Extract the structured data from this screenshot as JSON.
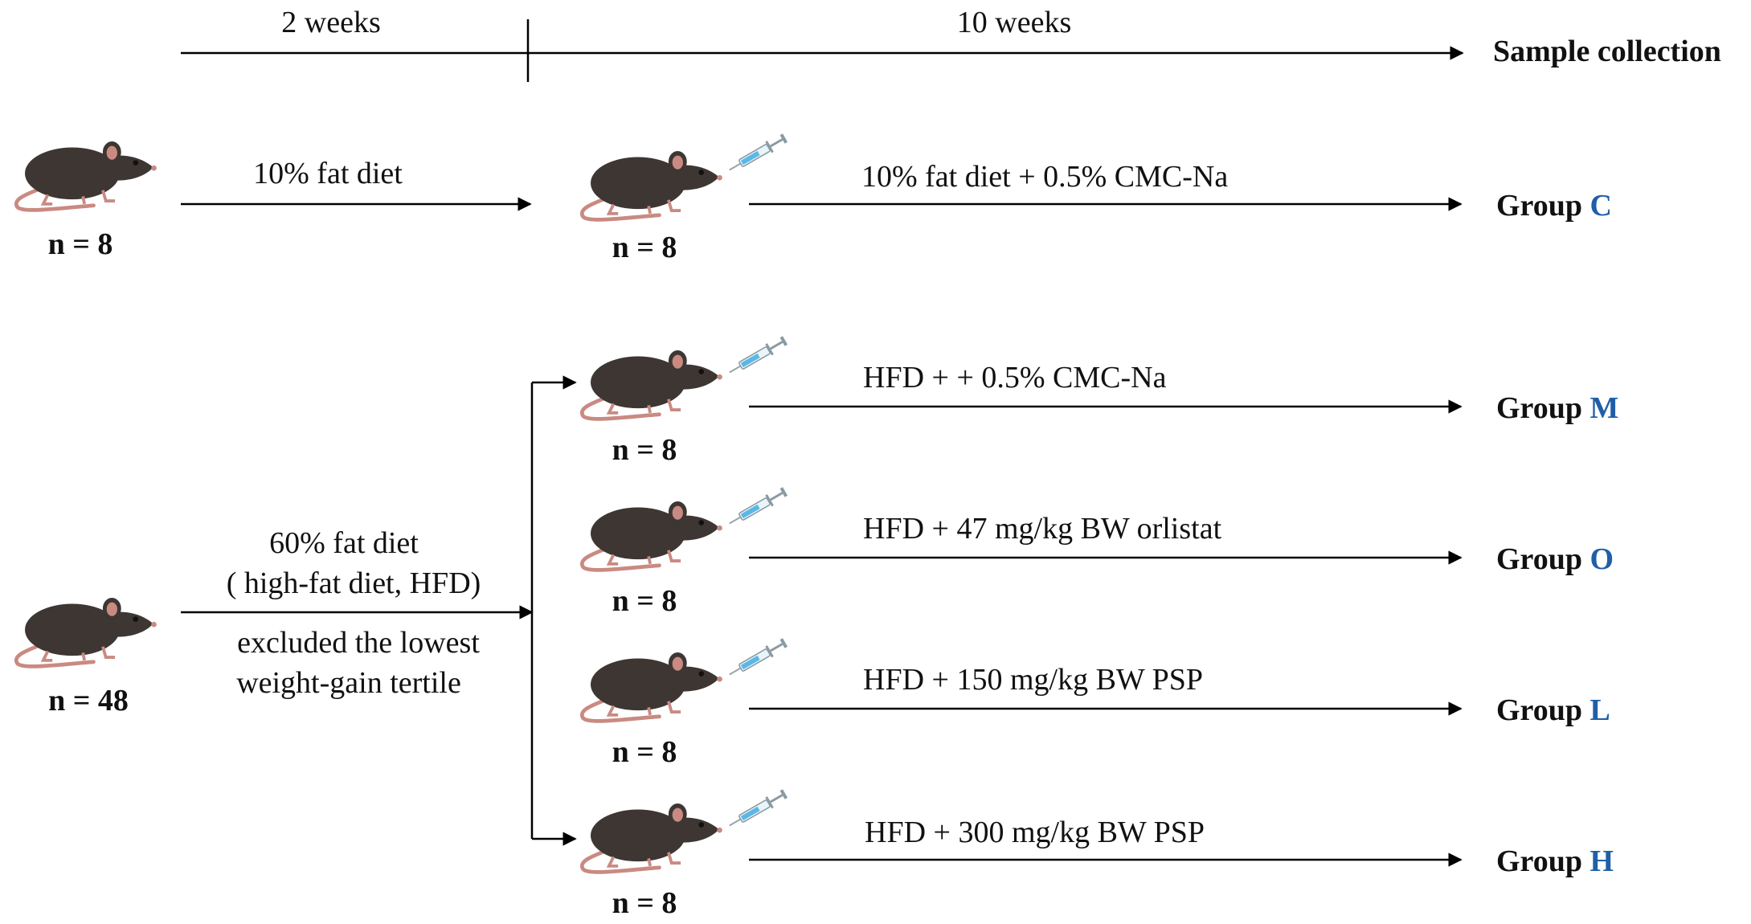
{
  "timeline": {
    "phase1_label": "2 weeks",
    "phase2_label": "10 weeks",
    "endpoint_label": "Sample collection"
  },
  "control_branch": {
    "start_count": "n = 8",
    "diet_label": "10% fat diet",
    "treated_count": "n = 8",
    "treatment_label": "10% fat diet + 0.5% CMC-Na",
    "group_prefix": "Group",
    "group_code": "C"
  },
  "hfd_branch": {
    "start_count": "n = 48",
    "diet_label_line1": "60% fat diet",
    "diet_label_line2": "( high-fat diet, HFD)",
    "exclusion_line1": "excluded the lowest",
    "exclusion_line2": "weight-gain tertile",
    "groups": [
      {
        "count": "n = 8",
        "treatment": "HFD + + 0.5% CMC-Na",
        "prefix": "Group",
        "code": "M"
      },
      {
        "count": "n = 8",
        "treatment": "HFD + 47 mg/kg  BW orlistat",
        "prefix": "Group",
        "code": "O"
      },
      {
        "count": "n = 8",
        "treatment": "HFD +  150 mg/kg  BW PSP",
        "prefix": "Group",
        "code": "L"
      },
      {
        "count": "n = 8",
        "treatment": "HFD + 300 mg/kg  BW PSP",
        "prefix": "Group",
        "code": "H"
      }
    ]
  },
  "colors": {
    "accent": "#1f5fa8",
    "mouse_body": "#3d3633",
    "mouse_tail": "#c98a82",
    "syringe": "#5bb8e6"
  }
}
